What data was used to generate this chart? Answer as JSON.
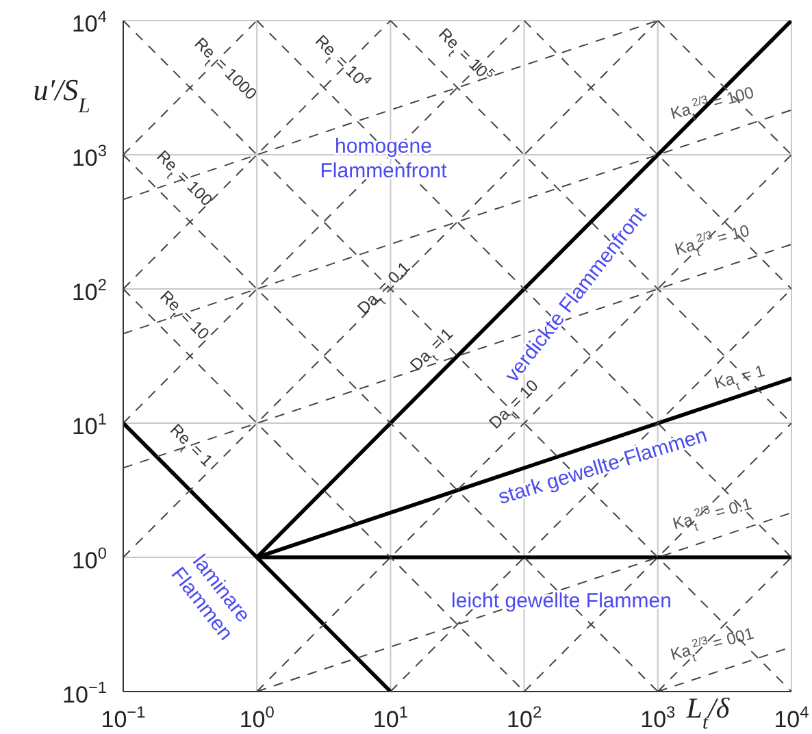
{
  "chart_data": {
    "type": "line",
    "xlabel": "L$_{t}$/δ",
    "ylabel": "u′/S$_{L}$",
    "log": "xy",
    "grid": true,
    "xlim": [
      0.1,
      10000
    ],
    "ylim": [
      0.1,
      10000
    ],
    "xticks": [
      {
        "value": 0.1,
        "label": "10$^{−1}$"
      },
      {
        "value": 1,
        "label": "10$^{0}$"
      },
      {
        "value": 10,
        "label": "10$^{1}$"
      },
      {
        "value": 100,
        "label": "10$^{2}$"
      },
      {
        "value": 1000,
        "label": "10$^{3}$"
      },
      {
        "value": 10000,
        "label": "10$^{4}$"
      }
    ],
    "yticks": [
      {
        "value": 0.1,
        "label": "10$^{−1}$"
      },
      {
        "value": 1,
        "label": "10$^{0}$"
      },
      {
        "value": 10,
        "label": "10$^{1}$"
      },
      {
        "value": 100,
        "label": "10$^{2}$"
      },
      {
        "value": 1000,
        "label": "10$^{3}$"
      },
      {
        "value": 10000,
        "label": "10$^{4}$"
      }
    ],
    "series": [
      {
        "x": [
          0.1,
          10
        ],
        "values": [
          10,
          0.1
        ],
        "color": "#000000",
        "line_style": "solid"
      },
      {
        "x": [
          1,
          10000
        ],
        "values": [
          1,
          10000
        ],
        "color": "#000000",
        "line_style": "solid"
      },
      {
        "x": [
          1,
          10000
        ],
        "values": [
          1,
          21.5
        ],
        "color": "#000000",
        "line_style": "solid"
      },
      {
        "x": [
          1,
          10000
        ],
        "values": [
          1,
          1
        ],
        "color": "#000000",
        "line_style": "solid"
      },
      {
        "x": [
          0.1,
          100
        ],
        "values": [
          100,
          0.1
        ],
        "color": "#444444",
        "line_style": "dashed"
      },
      {
        "x": [
          0.1,
          1000
        ],
        "values": [
          1000,
          0.1
        ],
        "color": "#444444",
        "line_style": "dashed"
      },
      {
        "x": [
          0.1,
          10000
        ],
        "values": [
          10000,
          0.1
        ],
        "color": "#444444",
        "line_style": "dashed"
      },
      {
        "x": [
          1,
          10000
        ],
        "values": [
          10000,
          1
        ],
        "color": "#444444",
        "line_style": "dashed"
      },
      {
        "x": [
          10,
          10000
        ],
        "values": [
          10000,
          10
        ],
        "color": "#444444",
        "line_style": "dashed"
      },
      {
        "x": [
          100,
          10000
        ],
        "values": [
          10000,
          100
        ],
        "color": "#444444",
        "line_style": "dashed"
      },
      {
        "x": [
          1000,
          10000
        ],
        "values": [
          10000,
          1000
        ],
        "color": "#444444",
        "line_style": "dashed"
      },
      {
        "x": [
          0.1,
          1000
        ],
        "values": [
          1,
          10000
        ],
        "color": "#444444",
        "line_style": "dashed"
      },
      {
        "x": [
          0.1,
          100
        ],
        "values": [
          10,
          10000
        ],
        "color": "#444444",
        "line_style": "dashed"
      },
      {
        "x": [
          0.1,
          10
        ],
        "values": [
          100,
          10000
        ],
        "color": "#444444",
        "line_style": "dashed"
      },
      {
        "x": [
          0.1,
          1
        ],
        "values": [
          1000,
          10000
        ],
        "color": "#444444",
        "line_style": "dashed"
      },
      {
        "x": [
          1,
          10000
        ],
        "values": [
          0.1,
          1000
        ],
        "color": "#444444",
        "line_style": "dashed"
      },
      {
        "x": [
          10,
          10000
        ],
        "values": [
          0.1,
          100
        ],
        "color": "#444444",
        "line_style": "dashed"
      },
      {
        "x": [
          100,
          10000
        ],
        "values": [
          0.1,
          10
        ],
        "color": "#444444",
        "line_style": "dashed"
      },
      {
        "x": [
          1000,
          10000
        ],
        "values": [
          0.1,
          1
        ],
        "color": "#444444",
        "line_style": "dashed"
      },
      {
        "x": [
          0.1,
          1000
        ],
        "values": [
          464,
          10000
        ],
        "color": "#444444",
        "line_style": "dashed"
      },
      {
        "x": [
          0.1,
          10000
        ],
        "values": [
          46.4,
          2154
        ],
        "color": "#444444",
        "line_style": "dashed"
      },
      {
        "x": [
          0.1,
          10000
        ],
        "values": [
          4.64,
          215
        ],
        "color": "#444444",
        "line_style": "dashed"
      },
      {
        "x": [
          1,
          10000
        ],
        "values": [
          0.1,
          2.15
        ],
        "color": "#444444",
        "line_style": "dashed"
      },
      {
        "x": [
          1000,
          10000
        ],
        "values": [
          0.1,
          0.215
        ],
        "color": "#444444",
        "line_style": "dashed"
      }
    ],
    "annotations": [
      "Re$_{t}$ = 1000",
      "Re$_{t}$ = 10$^{4}$",
      "Re$_{t}$ = 10$^{5}$",
      "Re$_{t}$ = 100",
      "Re$_{t}$ = 10",
      "Re$_{t}$ = 1",
      "Da$_{t}$ = 0.1",
      "Da$_{t}$ = 1",
      "Da$_{t}$ = 10",
      "Ka$_{t}$$^{2/3}$ = 100",
      "Ka$_{t}$$^{2/3}$ = 10",
      "Ka$_{t}$ = 1",
      "Ka$_{t}$$^{2/3}$ = 0.1",
      "Ka$_{t}$$^{2/3}$ = 001",
      "homogene\nFlammenfront",
      "verdickte Flammenfront",
      "stark gewellte Flammen",
      "leicht gewellte Flammen",
      "laminare\nFlammen"
    ]
  }
}
